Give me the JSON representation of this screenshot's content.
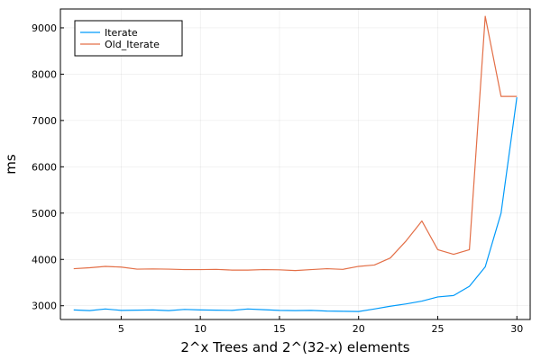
{
  "chart_data": {
    "type": "line",
    "title": "",
    "xlabel": "2^x Trees and 2^(32-x) elements",
    "ylabel": "ms",
    "xlim": [
      1.16,
      30.84
    ],
    "ylim": [
      2703,
      9407
    ],
    "x_ticks": [
      5,
      10,
      15,
      20,
      25,
      30
    ],
    "y_ticks": [
      3000,
      4000,
      5000,
      6000,
      7000,
      8000,
      9000
    ],
    "grid": true,
    "legend_position": "top-left",
    "x": [
      2,
      3,
      4,
      5,
      6,
      7,
      8,
      9,
      10,
      11,
      12,
      13,
      14,
      15,
      16,
      17,
      18,
      19,
      20,
      21,
      22,
      23,
      24,
      25,
      26,
      27,
      28,
      29,
      30
    ],
    "series": [
      {
        "name": "Iterate",
        "color": "#009AFA",
        "values": [
          2910,
          2895,
          2930,
          2900,
          2905,
          2910,
          2895,
          2920,
          2910,
          2905,
          2900,
          2930,
          2915,
          2900,
          2895,
          2900,
          2885,
          2880,
          2875,
          2930,
          2990,
          3040,
          3100,
          3190,
          3220,
          3420,
          3840,
          5000,
          7500
        ]
      },
      {
        "name": "Old_Iterate",
        "color": "#E36F47",
        "values": [
          3800,
          3820,
          3850,
          3835,
          3790,
          3795,
          3790,
          3780,
          3780,
          3785,
          3770,
          3770,
          3780,
          3775,
          3760,
          3780,
          3800,
          3785,
          3850,
          3880,
          4030,
          4400,
          4830,
          4210,
          4110,
          4210,
          9250,
          7520,
          7520
        ]
      }
    ]
  }
}
